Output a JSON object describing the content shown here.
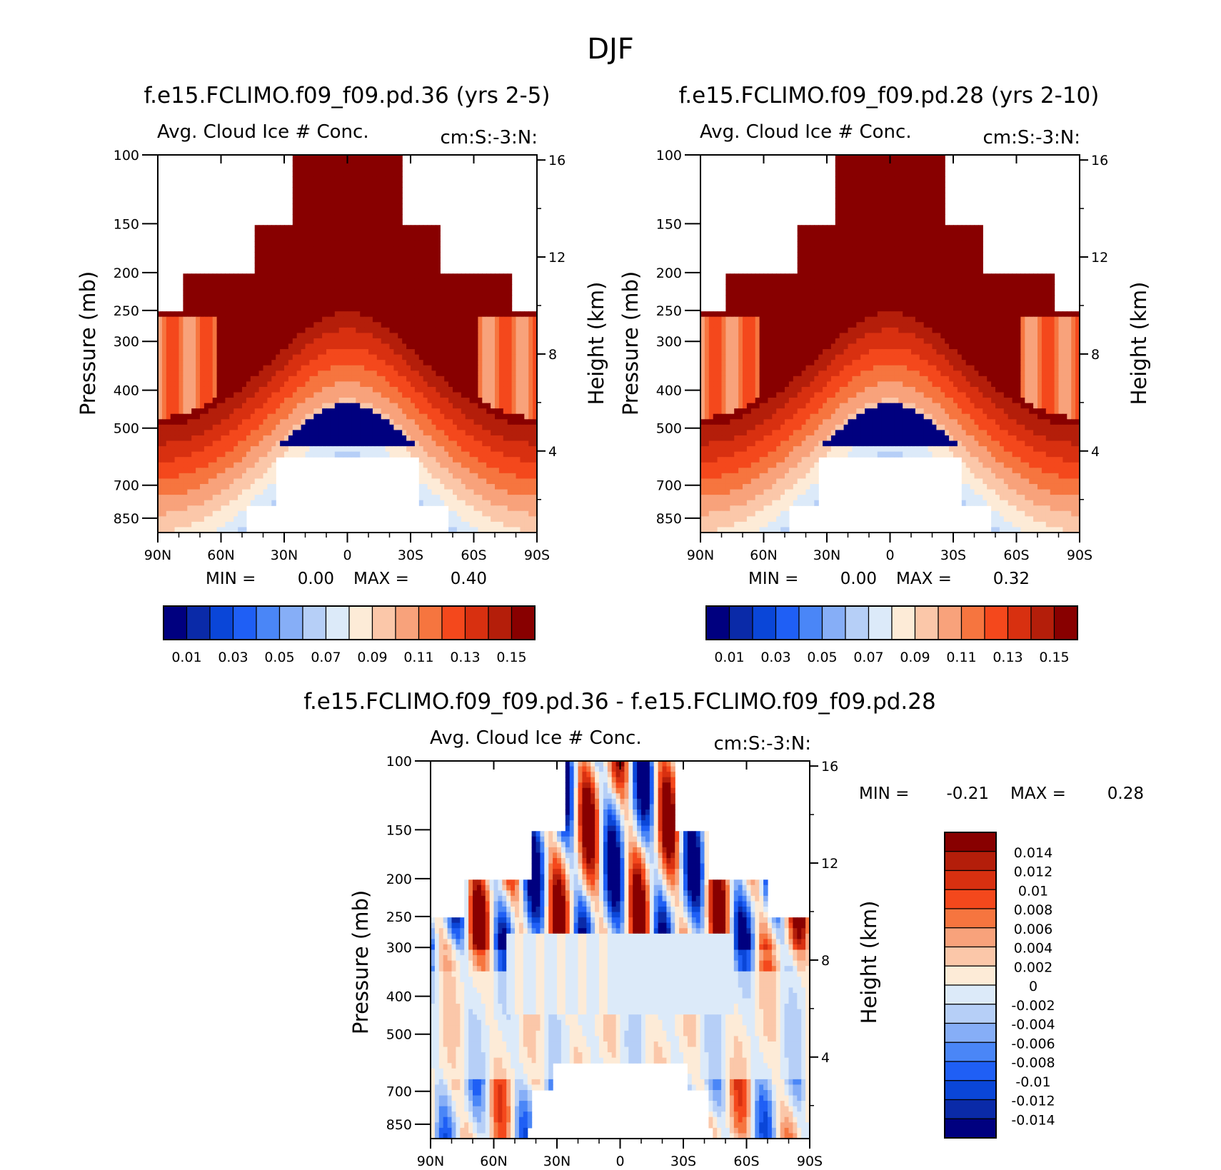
{
  "figure_title": "DJF",
  "colors": {
    "seq": [
      "#00007f",
      "#0a2aa8",
      "#0a46d8",
      "#1f5ff5",
      "#4a86f7",
      "#86aef7",
      "#b6cff7",
      "#dceaf9",
      "#fdebd7",
      "#fbc7a9",
      "#f8a27b",
      "#f6753f",
      "#f4481c",
      "#d83010",
      "#b41e0a",
      "#880000"
    ],
    "div": [
      "#00007f",
      "#0a2aa8",
      "#0a46d8",
      "#1f5ff5",
      "#4a86f7",
      "#86aef7",
      "#b6cff7",
      "#dceaf9",
      "#fdebd7",
      "#fbc7a9",
      "#f8a27b",
      "#f6753f",
      "#f4481c",
      "#d83010",
      "#b41e0a",
      "#880000"
    ]
  },
  "chart_data": [
    {
      "type": "heatmap",
      "panel": "top-left",
      "title": "f.e15.FCLIMO.f09_f09.pd.36 (yrs 2-5)",
      "subtitle_left": "Avg. Cloud Ice # Conc.",
      "subtitle_right": "cm:S:-3:N:",
      "ylabel": "Pressure (mb)",
      "ylabel_right": "Height (km)",
      "y_ticks": [
        "100",
        "150",
        "200",
        "250",
        "300",
        "400",
        "500",
        "700",
        "850"
      ],
      "y_right_ticks": [
        "16",
        "12",
        "8",
        "4"
      ],
      "x_ticks": [
        "90N",
        "60N",
        "30N",
        "0",
        "30S",
        "60S",
        "90S"
      ],
      "min_label": "MIN =",
      "min_value": "0.00",
      "max_label": "MAX =",
      "max_value": "0.40",
      "colorbar_labels": [
        "0.01",
        "0.03",
        "0.05",
        "0.07",
        "0.09",
        "0.11",
        "0.13",
        "0.15"
      ],
      "field": {
        "upper_level": 15,
        "lower_level": 3,
        "bulge_center_lat": 0,
        "bulge_top_p": 280,
        "edge_p": 450
      }
    },
    {
      "type": "heatmap",
      "panel": "top-right",
      "title": "f.e15.FCLIMO.f09_f09.pd.28 (yrs 2-10)",
      "subtitle_left": "Avg. Cloud Ice # Conc.",
      "subtitle_right": "cm:S:-3:N:",
      "ylabel": "Pressure (mb)",
      "ylabel_right": "Height (km)",
      "y_ticks": [
        "100",
        "150",
        "200",
        "250",
        "300",
        "400",
        "500",
        "700",
        "850"
      ],
      "y_right_ticks": [
        "16",
        "12",
        "8",
        "4"
      ],
      "x_ticks": [
        "90N",
        "60N",
        "30N",
        "0",
        "30S",
        "60S",
        "90S"
      ],
      "min_label": "MIN =",
      "min_value": "0.00",
      "max_label": "MAX =",
      "max_value": "0.32",
      "colorbar_labels": [
        "0.01",
        "0.03",
        "0.05",
        "0.07",
        "0.09",
        "0.11",
        "0.13",
        "0.15"
      ],
      "field": {
        "upper_level": 15,
        "lower_level": 3,
        "bulge_center_lat": 0,
        "bulge_top_p": 270,
        "edge_p": 460
      }
    },
    {
      "type": "heatmap",
      "panel": "bottom",
      "title": "f.e15.FCLIMO.f09_f09.pd.36 - f.e15.FCLIMO.f09_f09.pd.28",
      "subtitle_left": "Avg. Cloud Ice # Conc.",
      "subtitle_right": "cm:S:-3:N:",
      "ylabel": "Pressure (mb)",
      "ylabel_right": "Height (km)",
      "y_ticks": [
        "100",
        "150",
        "200",
        "250",
        "300",
        "400",
        "500",
        "700",
        "850"
      ],
      "y_right_ticks": [
        "16",
        "12",
        "8",
        "4"
      ],
      "x_ticks": [
        "90N",
        "60N",
        "30N",
        "0",
        "30S",
        "60S",
        "90S"
      ],
      "min_label": "MIN =",
      "min_value": "-0.21",
      "max_label": "MAX =",
      "max_value": "0.28",
      "colorbar_labels": [
        "0.014",
        "0.012",
        "0.01",
        "0.008",
        "0.006",
        "0.004",
        "0.002",
        "0",
        "-0.002",
        "-0.004",
        "-0.006",
        "-0.008",
        "-0.01",
        "-0.012",
        "-0.014"
      ]
    }
  ]
}
